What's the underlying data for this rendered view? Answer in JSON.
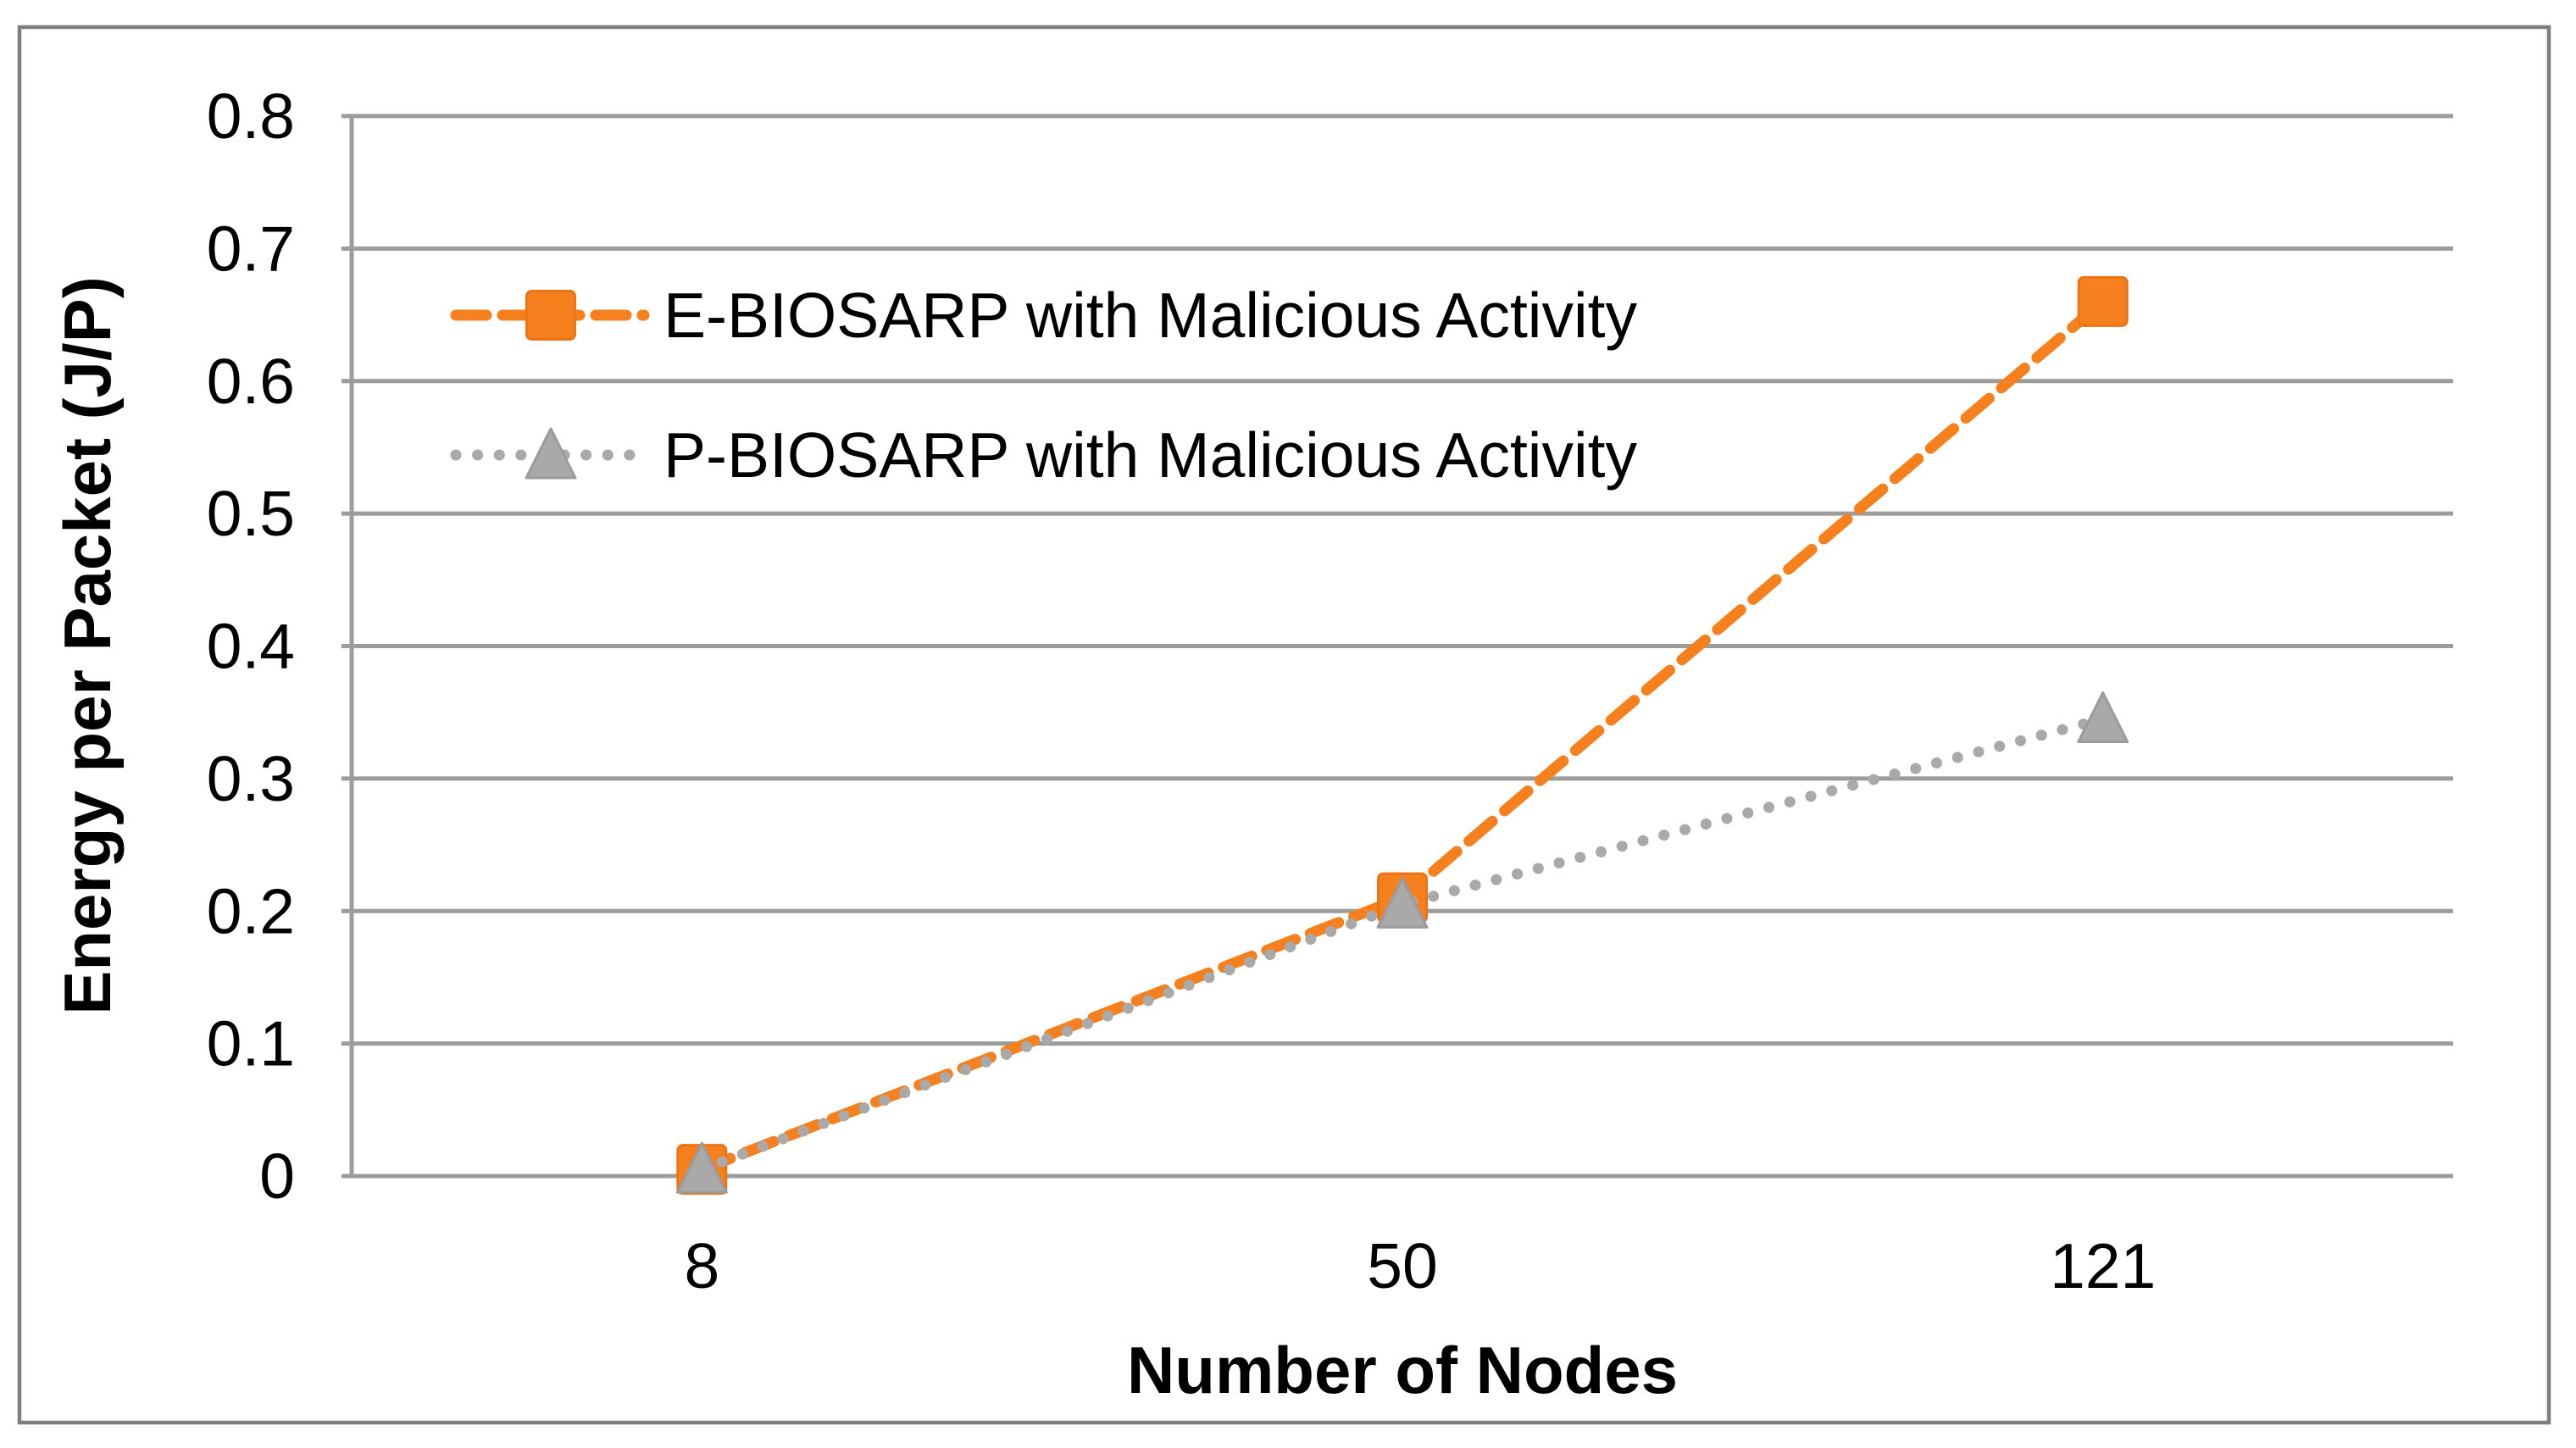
{
  "chart_data": {
    "type": "line",
    "title": "",
    "categories": [
      "8",
      "50",
      "121"
    ],
    "series": [
      {
        "name": "E-BIOSARP with Malicious Activity",
        "values": [
          0.005,
          0.21,
          0.66
        ],
        "color": "#F6801E",
        "marker": "square",
        "marker_stroke": "#ED7413",
        "line_style": "dashed"
      },
      {
        "name": "P-BIOSARP with Malicious Activity",
        "values": [
          0.005,
          0.205,
          0.345
        ],
        "color": "#A9A9A9",
        "marker": "triangle",
        "marker_stroke": "#9B9B9B",
        "line_style": "dotted"
      }
    ],
    "xlabel": "Number of Nodes",
    "ylabel": "Energy per Packet (J/P)",
    "ylim": [
      0,
      0.8
    ],
    "ytick_step": 0.1,
    "yticks": [
      "0",
      "0.1",
      "0.2",
      "0.3",
      "0.4",
      "0.5",
      "0.6",
      "0.7",
      "0.8"
    ],
    "grid": true,
    "legend_position": "upper-left-inside",
    "colors": {
      "gridline": "#9C9C9C",
      "axis": "#9C9C9C",
      "frame": "#7F7F7F",
      "text": "#000000"
    }
  }
}
